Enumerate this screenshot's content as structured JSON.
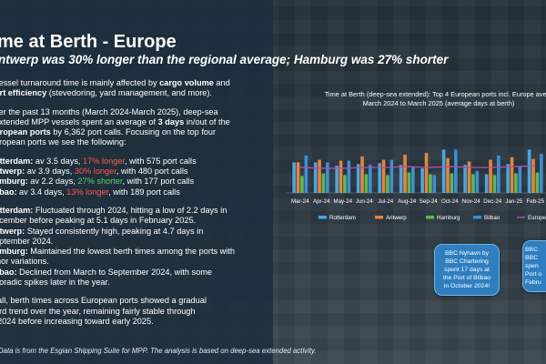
{
  "page": {
    "title": "me at Berth - Europe",
    "subtitle": "ntwerp was 30% longer than the regional average; Hamburg was 27% shorter"
  },
  "intro": {
    "l1a": "vessel turnaround time is mainly affected by ",
    "l1b": "cargo volume",
    "l1c": " and",
    "l2a": "ort efficiency",
    "l2b": " (stevedoring, yard management, and more)."
  },
  "summary": {
    "l1": "ver the past 13 months (March 2024-March 2025), deep-sea",
    "l2": "extended MPP vessels spent an average of ",
    "l2b": "3 days",
    "l2c": " in/out of the",
    "l3a": "uropean ports",
    "l3b": " by 6,362 port calls. Focusing on the top four",
    "l4": "uropean ports we see the following:"
  },
  "ports": [
    {
      "name": "otterdam:",
      "pre": " av 3.5 days, ",
      "diff": "17% longer",
      "color": "red",
      "post": ", with 575 port calls"
    },
    {
      "name": "ntwerp:",
      "pre": " av 3.9 days, ",
      "diff": "30% longer",
      "color": "red",
      "post": ", with 480 port calls"
    },
    {
      "name": "amburg:",
      "pre": " av 2.2 days, ",
      "diff": "27% shorter",
      "color": "green",
      "post": ", with 177 port calls"
    },
    {
      "name": "ilbao:",
      "pre": " av 3.4 days, ",
      "diff": "13% longer",
      "color": "red",
      "post": ", with 189 port calls"
    }
  ],
  "trends": [
    {
      "name": "otterdam:",
      "l1": " Fluctuated through 2024, hitting a low of 2.2 days in",
      "l2": "ecember before peaking at 5.1 days in February 2025."
    },
    {
      "name": "ntwerp:",
      "l1": " Stayed consistently high, peaking at 4.7 days in",
      "l2": "eptember 2024."
    },
    {
      "name": "amburg:",
      "l1": " Maintained the lowest berth times among the ports with",
      "l2": "inor variations."
    },
    {
      "name": "ilbao:",
      "l1": " Declined from March to September 2024, with some",
      "l2": "poradic spikes later in the year."
    }
  ],
  "conclusion": {
    "l1": "rall, berth times across European ports showed a gradual",
    "l2": "ard trend over the year, remaining fairly stable through",
    "l3": "-2024 before increasing toward early 2025."
  },
  "footnote": "Data is from the Esgian Shipping Suite for MPP. The analysis is based on deep-sea extended activity.",
  "chart_header": {
    "line1": "Time at Berth (deep-sea extended): Top 4 European ports incl. Europe avera",
    "line2": "March 2024 to March 2025 (average days at berth)"
  },
  "callouts": {
    "c1": [
      "BBC Nyhavn by",
      "BBC Chartering",
      "spent 17 days at",
      "the Port of Bilbao",
      "in October 2024!"
    ],
    "c2": [
      "BBC",
      "BBC",
      "spen",
      "Port o",
      "Febru"
    ]
  },
  "colors": {
    "rotterdam": "#4aa6e0",
    "antwerp": "#e8833a",
    "hamburg": "#5cb85c",
    "bilbao": "#3f8fd0",
    "europe_avg": "#b04fb0"
  },
  "chart_data": {
    "type": "bar",
    "categories": [
      "Mar-24",
      "Apr-24",
      "May-24",
      "Jun-24",
      "Jul-24",
      "Aug-24",
      "Sep-24",
      "Oct-24",
      "Nov-24",
      "Dec-24",
      "Jan-25",
      "Feb-25"
    ],
    "ylim": [
      0,
      6
    ],
    "series": [
      {
        "name": "Rotterdam",
        "values": [
          3.6,
          3.6,
          3.2,
          3.4,
          3.5,
          3.3,
          2.9,
          5.1,
          3.3,
          2.2,
          3.4,
          5.1
        ]
      },
      {
        "name": "Antwerp",
        "values": [
          3.6,
          3.9,
          3.8,
          4.3,
          3.9,
          4.5,
          4.7,
          4.1,
          3.7,
          3.9,
          4.2,
          4.0
        ]
      },
      {
        "name": "Hamburg",
        "values": [
          2.0,
          2.3,
          2.1,
          2.2,
          2.1,
          2.4,
          2.2,
          2.3,
          2.2,
          2.1,
          2.3,
          2.4
        ]
      },
      {
        "name": "Bilbao",
        "values": [
          4.4,
          3.6,
          3.8,
          3.3,
          3.9,
          3.0,
          2.1,
          5.1,
          2.6,
          4.4,
          3.1,
          4.6
        ]
      },
      {
        "name": "Europe avera",
        "type": "line",
        "values": [
          3.0,
          2.9,
          2.9,
          3.0,
          3.0,
          3.1,
          3.0,
          3.1,
          3.0,
          3.0,
          3.1,
          3.2
        ]
      }
    ],
    "legend": [
      "Rotterdam",
      "Antwerp",
      "Hamburg",
      "Bilbao",
      "Europe avera"
    ],
    "legend_position": "bottom"
  }
}
